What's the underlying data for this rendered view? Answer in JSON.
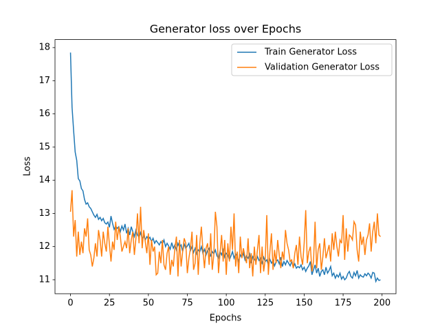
{
  "chart_data": {
    "type": "line",
    "title": "Generator loss over Epochs",
    "xlabel": "Epochs",
    "ylabel": "Loss",
    "x": [
      0,
      1,
      2,
      3,
      4,
      5,
      6,
      7,
      8,
      9,
      10,
      11,
      12,
      13,
      14,
      15,
      16,
      17,
      18,
      19,
      20,
      21,
      22,
      23,
      24,
      25,
      26,
      27,
      28,
      29,
      30,
      31,
      32,
      33,
      34,
      35,
      36,
      37,
      38,
      39,
      40,
      41,
      42,
      43,
      44,
      45,
      46,
      47,
      48,
      49,
      50,
      51,
      52,
      53,
      54,
      55,
      56,
      57,
      58,
      59,
      60,
      61,
      62,
      63,
      64,
      65,
      66,
      67,
      68,
      69,
      70,
      71,
      72,
      73,
      74,
      75,
      76,
      77,
      78,
      79,
      80,
      81,
      82,
      83,
      84,
      85,
      86,
      87,
      88,
      89,
      90,
      91,
      92,
      93,
      94,
      95,
      96,
      97,
      98,
      99,
      100,
      101,
      102,
      103,
      104,
      105,
      106,
      107,
      108,
      109,
      110,
      111,
      112,
      113,
      114,
      115,
      116,
      117,
      118,
      119,
      120,
      121,
      122,
      123,
      124,
      125,
      126,
      127,
      128,
      129,
      130,
      131,
      132,
      133,
      134,
      135,
      136,
      137,
      138,
      139,
      140,
      141,
      142,
      143,
      144,
      145,
      146,
      147,
      148,
      149,
      150,
      151,
      152,
      153,
      154,
      155,
      156,
      157,
      158,
      159,
      160,
      161,
      162,
      163,
      164,
      165,
      166,
      167,
      168,
      169,
      170,
      171,
      172,
      173,
      174,
      175,
      176,
      177,
      178,
      179,
      180,
      181,
      182,
      183,
      184,
      185,
      186,
      187,
      188,
      189,
      190,
      191,
      192,
      193,
      194,
      195,
      196,
      197,
      198,
      199
    ],
    "series": [
      {
        "name": "Train Generator Loss",
        "color": "#1f77b4",
        "values": [
          17.85,
          16.2,
          15.5,
          14.85,
          14.6,
          14.05,
          13.98,
          13.75,
          13.68,
          13.42,
          13.28,
          13.32,
          13.2,
          13.15,
          13.05,
          12.95,
          12.88,
          12.97,
          12.82,
          12.88,
          12.78,
          12.85,
          12.72,
          12.68,
          12.74,
          12.58,
          12.92,
          12.7,
          12.52,
          12.62,
          12.55,
          12.6,
          12.45,
          12.62,
          12.5,
          12.68,
          12.4,
          12.55,
          12.35,
          12.6,
          12.45,
          12.3,
          12.5,
          12.35,
          12.28,
          12.42,
          12.25,
          12.32,
          12.2,
          12.3,
          12.22,
          12.28,
          12.15,
          12.25,
          12.1,
          12.18,
          12.12,
          12.05,
          12.15,
          12.08,
          12.2,
          12.0,
          12.1,
          12.02,
          11.92,
          12.12,
          11.95,
          12.05,
          11.9,
          12.1,
          11.98,
          12.05,
          11.85,
          12.08,
          11.95,
          12.02,
          12.1,
          11.88,
          12.0,
          11.82,
          11.95,
          11.78,
          11.9,
          11.85,
          12.0,
          11.8,
          11.92,
          11.75,
          11.88,
          11.95,
          11.7,
          11.85,
          11.78,
          11.9,
          11.72,
          11.65,
          11.85,
          11.75,
          11.9,
          11.68,
          11.8,
          11.75,
          11.6,
          11.72,
          11.85,
          11.65,
          11.78,
          11.7,
          11.55,
          11.75,
          11.68,
          11.8,
          11.6,
          11.72,
          11.65,
          11.78,
          11.5,
          11.7,
          11.62,
          11.55,
          11.7,
          11.58,
          11.65,
          11.5,
          11.68,
          11.55,
          11.6,
          11.45,
          11.62,
          11.5,
          11.58,
          11.42,
          11.55,
          11.6,
          11.48,
          11.68,
          11.4,
          11.55,
          11.45,
          11.58,
          11.5,
          11.42,
          11.55,
          11.38,
          11.48,
          11.35,
          11.4,
          11.36,
          11.45,
          11.3,
          11.38,
          11.25,
          11.35,
          11.42,
          11.55,
          11.15,
          11.3,
          11.45,
          11.2,
          11.35,
          11.1,
          11.25,
          11.3,
          11.15,
          11.38,
          11.2,
          11.28,
          11.4,
          11.12,
          11.2,
          11.05,
          11.15,
          11.08,
          11.2,
          11.02,
          11.1,
          11.0,
          11.05,
          11.18,
          11.25,
          11.1,
          11.05,
          11.22,
          11.12,
          11.28,
          11.05,
          11.15,
          11.1,
          11.08,
          11.18,
          11.12,
          11.2,
          11.15,
          11.05,
          11.22,
          11.2,
          10.95,
          11.05,
          10.98,
          11.0
        ]
      },
      {
        "name": "Validation Generator Loss",
        "color": "#ff7f0e",
        "values": [
          13.05,
          13.7,
          12.3,
          12.8,
          11.7,
          12.45,
          11.75,
          12.15,
          11.8,
          12.55,
          12.3,
          12.85,
          11.9,
          11.75,
          11.4,
          11.65,
          12.1,
          11.7,
          12.5,
          12.2,
          11.7,
          12.45,
          12.1,
          11.85,
          12.6,
          12.05,
          11.55,
          12.15,
          11.9,
          12.75,
          12.2,
          12.6,
          12.3,
          11.85,
          12.0,
          12.15,
          11.95,
          12.55,
          11.8,
          12.2,
          12.45,
          11.75,
          12.25,
          13.0,
          12.1,
          13.2,
          11.95,
          12.5,
          12.15,
          11.8,
          12.4,
          11.45,
          12.2,
          11.85,
          12.0,
          11.15,
          11.2,
          11.85,
          11.5,
          12.2,
          11.45,
          11.3,
          11.8,
          12.0,
          11.15,
          11.6,
          11.4,
          11.95,
          12.3,
          11.1,
          12.2,
          11.4,
          11.85,
          12.25,
          12.1,
          11.2,
          11.65,
          11.95,
          12.45,
          11.3,
          11.5,
          12.35,
          11.15,
          12.1,
          12.6,
          11.9,
          11.35,
          11.95,
          12.1,
          11.45,
          12.4,
          11.3,
          11.75,
          13.05,
          12.6,
          11.2,
          11.8,
          12.35,
          11.55,
          12.2,
          11.15,
          12.1,
          11.55,
          12.6,
          11.9,
          13.0,
          11.4,
          11.85,
          11.2,
          12.3,
          11.65,
          11.95,
          11.7,
          11.5,
          12.25,
          11.35,
          11.8,
          11.1,
          12.0,
          11.45,
          11.9,
          12.35,
          11.2,
          12.0,
          11.25,
          11.6,
          12.95,
          11.15,
          11.85,
          12.4,
          11.3,
          11.9,
          11.5,
          12.2,
          11.75,
          11.35,
          11.85,
          11.6,
          12.5,
          12.1,
          11.9,
          11.55,
          11.6,
          11.35,
          11.8,
          12.05,
          11.45,
          12.3,
          11.7,
          11.45,
          12.1,
          13.1,
          11.5,
          11.85,
          12.0,
          11.25,
          11.55,
          12.75,
          11.35,
          11.9,
          12.1,
          11.3,
          11.7,
          12.25,
          11.65,
          11.85,
          12.05,
          11.55,
          12.4,
          11.9,
          12.45,
          12.0,
          11.7,
          12.2,
          12.1,
          12.95,
          11.6,
          12.55,
          11.85,
          12.35,
          12.3,
          12.2,
          12.75,
          12.65,
          11.9,
          11.55,
          12.45,
          12.05,
          12.3,
          11.75,
          12.2,
          12.35,
          12.7,
          11.85,
          12.45,
          12.75,
          12.1,
          13.0,
          12.35,
          12.3
        ]
      }
    ],
    "xlim": [
      -9.95,
      208.95
    ],
    "xticks": [
      0,
      25,
      50,
      75,
      100,
      125,
      150,
      175,
      200
    ],
    "ylim": [
      10.58,
      18.24
    ],
    "yticks": [
      11,
      12,
      13,
      14,
      15,
      16,
      17,
      18
    ],
    "legend": "upper right"
  }
}
